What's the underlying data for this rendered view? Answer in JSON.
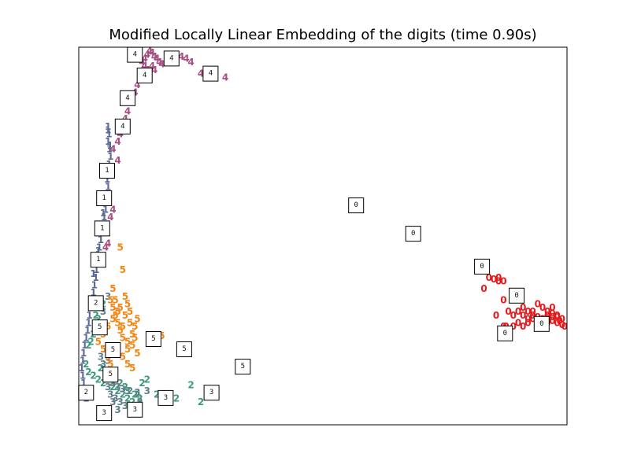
{
  "chart_data": {
    "type": "scatter",
    "title": "Modified Locally Linear Embedding of the digits (time 0.90s)",
    "xlabel": "",
    "ylabel": "",
    "xlim": [
      0,
      1
    ],
    "ylim": [
      0,
      1
    ],
    "grid": false,
    "ticks": false,
    "colors": {
      "0": "#e41a1c",
      "1": "#5c6a98",
      "2": "#3e9a7a",
      "3": "#5e7f8b",
      "4": "#a64f82",
      "5": "#f58410"
    },
    "series": [
      {
        "name": "0",
        "points": [
          [
            0.87,
            0.38
          ],
          [
            0.86,
            0.38
          ],
          [
            0.85,
            0.385
          ],
          [
            0.86,
            0.39
          ],
          [
            0.84,
            0.39
          ],
          [
            0.83,
            0.36
          ],
          [
            0.87,
            0.33
          ],
          [
            0.855,
            0.29
          ],
          [
            0.87,
            0.26
          ],
          [
            0.88,
            0.3
          ],
          [
            0.89,
            0.29
          ],
          [
            0.9,
            0.3
          ],
          [
            0.91,
            0.29
          ],
          [
            0.92,
            0.28
          ],
          [
            0.93,
            0.28
          ],
          [
            0.94,
            0.27
          ],
          [
            0.95,
            0.28
          ],
          [
            0.96,
            0.28
          ],
          [
            0.97,
            0.275
          ],
          [
            0.98,
            0.27
          ],
          [
            0.99,
            0.265
          ],
          [
            0.995,
            0.26
          ],
          [
            0.98,
            0.29
          ],
          [
            0.97,
            0.31
          ],
          [
            0.96,
            0.3
          ],
          [
            0.95,
            0.31
          ],
          [
            0.94,
            0.32
          ],
          [
            0.93,
            0.3
          ],
          [
            0.92,
            0.27
          ],
          [
            0.91,
            0.26
          ],
          [
            0.9,
            0.27
          ],
          [
            0.89,
            0.26
          ],
          [
            0.88,
            0.25
          ],
          [
            0.875,
            0.26
          ],
          [
            0.97,
            0.285
          ],
          [
            0.98,
            0.285
          ],
          [
            0.99,
            0.28
          ],
          [
            0.96,
            0.27
          ],
          [
            0.95,
            0.265
          ],
          [
            0.94,
            0.285
          ],
          [
            0.93,
            0.29
          ],
          [
            0.92,
            0.3
          ],
          [
            0.91,
            0.31
          ],
          [
            0.96,
            0.29
          ],
          [
            0.97,
            0.295
          ],
          [
            0.985,
            0.275
          ]
        ]
      },
      {
        "name": "1",
        "points": [
          [
            0.06,
            0.79
          ],
          [
            0.062,
            0.77
          ],
          [
            0.06,
            0.75
          ],
          [
            0.063,
            0.73
          ],
          [
            0.065,
            0.71
          ],
          [
            0.062,
            0.69
          ],
          [
            0.06,
            0.67
          ],
          [
            0.058,
            0.65
          ],
          [
            0.06,
            0.63
          ],
          [
            0.055,
            0.61
          ],
          [
            0.058,
            0.59
          ],
          [
            0.055,
            0.57
          ],
          [
            0.052,
            0.55
          ],
          [
            0.05,
            0.53
          ],
          [
            0.048,
            0.51
          ],
          [
            0.045,
            0.49
          ],
          [
            0.042,
            0.47
          ],
          [
            0.04,
            0.45
          ],
          [
            0.038,
            0.43
          ],
          [
            0.036,
            0.41
          ],
          [
            0.035,
            0.39
          ],
          [
            0.032,
            0.37
          ],
          [
            0.03,
            0.35
          ],
          [
            0.028,
            0.33
          ],
          [
            0.025,
            0.31
          ],
          [
            0.022,
            0.29
          ],
          [
            0.02,
            0.27
          ],
          [
            0.018,
            0.25
          ],
          [
            0.015,
            0.23
          ],
          [
            0.012,
            0.21
          ],
          [
            0.01,
            0.19
          ],
          [
            0.008,
            0.17
          ],
          [
            0.006,
            0.15
          ],
          [
            0.008,
            0.13
          ],
          [
            0.01,
            0.11
          ],
          [
            0.012,
            0.09
          ],
          [
            0.015,
            0.07
          ],
          [
            0.06,
            0.78
          ],
          [
            0.064,
            0.74
          ],
          [
            0.05,
            0.56
          ],
          [
            0.04,
            0.46
          ],
          [
            0.03,
            0.4
          ]
        ]
      },
      {
        "name": "2",
        "points": [
          [
            0.05,
            0.32
          ],
          [
            0.04,
            0.28
          ],
          [
            0.03,
            0.24
          ],
          [
            0.02,
            0.21
          ],
          [
            0.015,
            0.16
          ],
          [
            0.02,
            0.14
          ],
          [
            0.03,
            0.13
          ],
          [
            0.04,
            0.12
          ],
          [
            0.05,
            0.11
          ],
          [
            0.06,
            0.12
          ],
          [
            0.07,
            0.1
          ],
          [
            0.08,
            0.09
          ],
          [
            0.09,
            0.08
          ],
          [
            0.1,
            0.07
          ],
          [
            0.11,
            0.06
          ],
          [
            0.12,
            0.08
          ],
          [
            0.13,
            0.11
          ],
          [
            0.14,
            0.12
          ],
          [
            0.16,
            0.08
          ],
          [
            0.2,
            0.07
          ],
          [
            0.25,
            0.06
          ],
          [
            0.23,
            0.105
          ],
          [
            0.035,
            0.29
          ],
          [
            0.025,
            0.22
          ],
          [
            0.045,
            0.15
          ],
          [
            0.055,
            0.14
          ],
          [
            0.065,
            0.13
          ],
          [
            0.075,
            0.12
          ],
          [
            0.085,
            0.11
          ],
          [
            0.095,
            0.1
          ],
          [
            0.105,
            0.09
          ],
          [
            0.115,
            0.08
          ],
          [
            0.125,
            0.07
          ]
        ]
      },
      {
        "name": "3",
        "points": [
          [
            0.06,
            0.34
          ],
          [
            0.05,
            0.3
          ],
          [
            0.04,
            0.26
          ],
          [
            0.055,
            0.2
          ],
          [
            0.06,
            0.17
          ],
          [
            0.065,
            0.14
          ],
          [
            0.07,
            0.11
          ],
          [
            0.08,
            0.1
          ],
          [
            0.09,
            0.095
          ],
          [
            0.1,
            0.09
          ],
          [
            0.12,
            0.085
          ],
          [
            0.14,
            0.09
          ],
          [
            0.07,
            0.06
          ],
          [
            0.08,
            0.04
          ],
          [
            0.045,
            0.18
          ],
          [
            0.05,
            0.16
          ],
          [
            0.055,
            0.13
          ],
          [
            0.06,
            0.1
          ],
          [
            0.065,
            0.08
          ],
          [
            0.075,
            0.07
          ],
          [
            0.085,
            0.06
          ],
          [
            0.095,
            0.05
          ],
          [
            0.105,
            0.04
          ],
          [
            0.115,
            0.05
          ],
          [
            0.125,
            0.06
          ]
        ]
      },
      {
        "name": "4",
        "points": [
          [
            0.13,
            0.96
          ],
          [
            0.135,
            0.97
          ],
          [
            0.14,
            0.98
          ],
          [
            0.145,
            0.99
          ],
          [
            0.15,
            0.985
          ],
          [
            0.155,
            0.975
          ],
          [
            0.16,
            0.97
          ],
          [
            0.165,
            0.96
          ],
          [
            0.17,
            0.955
          ],
          [
            0.18,
            0.96
          ],
          [
            0.19,
            0.965
          ],
          [
            0.2,
            0.97
          ],
          [
            0.21,
            0.975
          ],
          [
            0.22,
            0.97
          ],
          [
            0.23,
            0.96
          ],
          [
            0.25,
            0.93
          ],
          [
            0.26,
            0.925
          ],
          [
            0.27,
            0.93
          ],
          [
            0.28,
            0.94
          ],
          [
            0.3,
            0.92
          ],
          [
            0.13,
            0.94
          ],
          [
            0.125,
            0.92
          ],
          [
            0.12,
            0.9
          ],
          [
            0.115,
            0.88
          ],
          [
            0.11,
            0.86
          ],
          [
            0.1,
            0.83
          ],
          [
            0.095,
            0.81
          ],
          [
            0.09,
            0.79
          ],
          [
            0.085,
            0.77
          ],
          [
            0.08,
            0.75
          ],
          [
            0.07,
            0.73
          ],
          [
            0.08,
            0.7
          ],
          [
            0.07,
            0.57
          ],
          [
            0.065,
            0.55
          ],
          [
            0.06,
            0.48
          ],
          [
            0.055,
            0.47
          ],
          [
            0.14,
            0.94
          ],
          [
            0.15,
            0.95
          ],
          [
            0.135,
            0.95
          ],
          [
            0.145,
            0.93
          ],
          [
            0.155,
            0.94
          ]
        ]
      },
      {
        "name": "5",
        "points": [
          [
            0.085,
            0.47
          ],
          [
            0.09,
            0.41
          ],
          [
            0.07,
            0.36
          ],
          [
            0.065,
            0.33
          ],
          [
            0.07,
            0.31
          ],
          [
            0.075,
            0.29
          ],
          [
            0.08,
            0.27
          ],
          [
            0.085,
            0.25
          ],
          [
            0.09,
            0.23
          ],
          [
            0.1,
            0.22
          ],
          [
            0.11,
            0.24
          ],
          [
            0.115,
            0.26
          ],
          [
            0.12,
            0.28
          ],
          [
            0.105,
            0.3
          ],
          [
            0.1,
            0.32
          ],
          [
            0.095,
            0.34
          ],
          [
            0.08,
            0.3
          ],
          [
            0.07,
            0.28
          ],
          [
            0.06,
            0.26
          ],
          [
            0.05,
            0.24
          ],
          [
            0.04,
            0.22
          ],
          [
            0.05,
            0.2
          ],
          [
            0.06,
            0.18
          ],
          [
            0.065,
            0.16
          ],
          [
            0.07,
            0.14
          ],
          [
            0.08,
            0.2
          ],
          [
            0.09,
            0.18
          ],
          [
            0.1,
            0.16
          ],
          [
            0.11,
            0.15
          ],
          [
            0.12,
            0.19
          ],
          [
            0.17,
            0.235
          ],
          [
            0.075,
            0.33
          ],
          [
            0.085,
            0.31
          ],
          [
            0.095,
            0.29
          ],
          [
            0.105,
            0.27
          ],
          [
            0.11,
            0.21
          ],
          [
            0.1,
            0.2
          ],
          [
            0.09,
            0.26
          ],
          [
            0.115,
            0.23
          ]
        ]
      }
    ],
    "thumbnails": [
      {
        "digit": "4",
        "pos": [
          0.115,
          0.98
        ]
      },
      {
        "digit": "4",
        "pos": [
          0.19,
          0.97
        ]
      },
      {
        "digit": "4",
        "pos": [
          0.135,
          0.925
        ]
      },
      {
        "digit": "4",
        "pos": [
          0.27,
          0.93
        ]
      },
      {
        "digit": "4",
        "pos": [
          0.1,
          0.865
        ]
      },
      {
        "digit": "4",
        "pos": [
          0.09,
          0.79
        ]
      },
      {
        "digit": "1",
        "pos": [
          0.058,
          0.673
        ]
      },
      {
        "digit": "1",
        "pos": [
          0.052,
          0.6
        ]
      },
      {
        "digit": "1",
        "pos": [
          0.048,
          0.52
        ]
      },
      {
        "digit": "1",
        "pos": [
          0.04,
          0.437
        ]
      },
      {
        "digit": "2",
        "pos": [
          0.035,
          0.322
        ]
      },
      {
        "digit": "5",
        "pos": [
          0.043,
          0.258
        ]
      },
      {
        "digit": "5",
        "pos": [
          0.07,
          0.198
        ]
      },
      {
        "digit": "5",
        "pos": [
          0.153,
          0.227
        ]
      },
      {
        "digit": "5",
        "pos": [
          0.216,
          0.2
        ]
      },
      {
        "digit": "5",
        "pos": [
          0.336,
          0.154
        ]
      },
      {
        "digit": "5",
        "pos": [
          0.065,
          0.133
        ]
      },
      {
        "digit": "2",
        "pos": [
          0.015,
          0.085
        ]
      },
      {
        "digit": "3",
        "pos": [
          0.052,
          0.031
        ]
      },
      {
        "digit": "3",
        "pos": [
          0.115,
          0.04
        ]
      },
      {
        "digit": "3",
        "pos": [
          0.178,
          0.071
        ]
      },
      {
        "digit": "3",
        "pos": [
          0.272,
          0.085
        ]
      },
      {
        "digit": "0",
        "pos": [
          0.568,
          0.581
        ]
      },
      {
        "digit": "0",
        "pos": [
          0.685,
          0.506
        ]
      },
      {
        "digit": "0",
        "pos": [
          0.826,
          0.419
        ]
      },
      {
        "digit": "0",
        "pos": [
          0.897,
          0.342
        ]
      },
      {
        "digit": "0",
        "pos": [
          0.873,
          0.242
        ]
      },
      {
        "digit": "0",
        "pos": [
          0.948,
          0.267
        ]
      }
    ]
  }
}
